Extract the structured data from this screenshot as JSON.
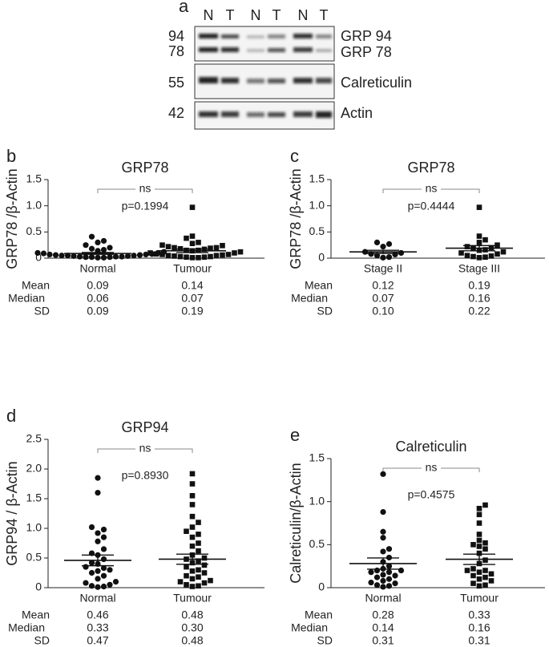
{
  "blot": {
    "panel": "a",
    "lanes": [
      "N",
      "T",
      "N",
      "T",
      "N",
      "T"
    ],
    "weights": [
      "94",
      "78",
      "55",
      "42"
    ],
    "proteins": [
      "GRP 94",
      "GRP 78",
      "Calreticulin",
      "Actin"
    ]
  },
  "chart_data": [
    {
      "type": "dot",
      "panel": "b",
      "title": "GRP78",
      "ylabel": "GRP78 /β-Actin",
      "ylim": [
        0,
        1.5
      ],
      "yticks": [
        0,
        0.5,
        {
          "value": 1,
          "label": "1.0"
        },
        1.5
      ],
      "comparison": {
        "label": "ns",
        "p": "p=0.1994"
      },
      "stats_names": [
        "Mean",
        "Median",
        "SD"
      ],
      "groups": [
        {
          "name": "Normal",
          "marker": "circle",
          "color": "#111111",
          "sem": 0.017,
          "stats": [
            0.09,
            0.06,
            0.09
          ],
          "values": [
            0.41,
            0.33,
            0.3,
            0.25,
            0.2,
            0.18,
            0.16,
            0.14,
            0.12,
            0.1,
            0.1,
            0.09,
            0.08,
            0.07,
            0.06,
            0.06,
            0.05,
            0.05,
            0.04,
            0.04,
            0.03,
            0.03,
            0.02,
            0.02,
            0.01,
            0.01,
            0.02,
            0.03,
            0.05,
            0.07
          ]
        },
        {
          "name": "Tumour",
          "marker": "square",
          "color": "#111111",
          "sem": 0.034,
          "stats": [
            0.14,
            0.07,
            0.19
          ],
          "values": [
            0.97,
            0.42,
            0.38,
            0.3,
            0.28,
            0.25,
            0.24,
            0.22,
            0.2,
            0.19,
            0.18,
            0.17,
            0.15,
            0.14,
            0.12,
            0.1,
            0.08,
            0.07,
            0.07,
            0.06,
            0.05,
            0.05,
            0.04,
            0.03,
            0.03,
            0.02,
            0.02,
            0.01,
            0.01,
            0.1,
            0.2,
            0.15
          ]
        }
      ]
    },
    {
      "type": "dot",
      "panel": "c",
      "title": "GRP78",
      "ylabel": "GRP78 /β-Actin",
      "ylim": [
        0,
        1.5
      ],
      "yticks": [
        0,
        0.5,
        {
          "value": 1,
          "label": "1.0"
        },
        1.5
      ],
      "comparison": {
        "label": "ns",
        "p": "p=0.4444"
      },
      "stats_names": [
        "Mean",
        "Median",
        "SD"
      ],
      "groups": [
        {
          "name": "Stage II",
          "marker": "circle",
          "color": "#111111",
          "sem": 0.03,
          "stats": [
            0.12,
            0.07,
            0.1
          ],
          "stats_labels": [
            "0.12",
            "0.07",
            "0.10"
          ],
          "values": [
            0.3,
            0.27,
            0.22,
            0.12,
            0.1,
            0.08,
            0.07,
            0.05,
            0.02,
            0.01
          ]
        },
        {
          "name": "Stage III",
          "marker": "square",
          "color": "#111111",
          "sem": 0.05,
          "stats": [
            0.19,
            0.16,
            0.22
          ],
          "values": [
            0.97,
            0.42,
            0.35,
            0.3,
            0.25,
            0.22,
            0.2,
            0.18,
            0.16,
            0.15,
            0.12,
            0.1,
            0.08,
            0.05,
            0.04,
            0.03,
            0.02,
            0.01
          ]
        }
      ]
    },
    {
      "type": "dot",
      "panel": "d",
      "title": "GRP94",
      "ylabel": "GRP94 / β-Actin",
      "ylim": [
        0,
        2.5
      ],
      "yticks": [
        0,
        0.5,
        {
          "value": 1,
          "label": "1.0"
        },
        1.5,
        {
          "value": 2,
          "label": "2.0"
        },
        2.5
      ],
      "comparison": {
        "label": "ns",
        "p": "p=0.8930"
      },
      "stats_names": [
        "Mean",
        "Median",
        "SD"
      ],
      "groups": [
        {
          "name": "Normal",
          "marker": "circle",
          "color": "#111111",
          "sem": 0.09,
          "stats": [
            0.46,
            0.33,
            0.47
          ],
          "values": [
            1.85,
            1.6,
            1.02,
            0.98,
            0.92,
            0.85,
            0.78,
            0.65,
            0.58,
            0.55,
            0.48,
            0.42,
            0.35,
            0.33,
            0.3,
            0.28,
            0.25,
            0.2,
            0.15,
            0.1,
            0.08,
            0.05,
            0.03,
            0.02,
            0.01,
            0.4
          ]
        },
        {
          "name": "Tumour",
          "marker": "square",
          "color": "#111111",
          "sem": 0.085,
          "stats": [
            0.48,
            0.3,
            0.48
          ],
          "stats_labels": [
            "0.48",
            "0.30",
            "0.48"
          ],
          "values": [
            1.92,
            1.75,
            1.55,
            1.4,
            1.2,
            1.1,
            1.02,
            0.95,
            0.9,
            0.85,
            0.75,
            0.62,
            0.55,
            0.48,
            0.45,
            0.42,
            0.35,
            0.3,
            0.28,
            0.25,
            0.2,
            0.18,
            0.15,
            0.12,
            0.1,
            0.08,
            0.05,
            0.03,
            0.02,
            0.7,
            0.5,
            0.38
          ]
        }
      ]
    },
    {
      "type": "dot",
      "panel": "e",
      "title": "Calreticulin",
      "ylabel": "Calreticulin/β-Actin",
      "ylim": [
        0,
        1.5
      ],
      "yticks": [
        0,
        0.5,
        {
          "value": 1,
          "label": "1.0"
        },
        1.5
      ],
      "comparison": {
        "label": "ns",
        "p": "p=0.4575"
      },
      "stats_names": [
        "Mean",
        "Median",
        "SD"
      ],
      "groups": [
        {
          "name": "Normal",
          "marker": "circle",
          "color": "#111111",
          "sem": 0.065,
          "stats": [
            0.28,
            0.14,
            0.31
          ],
          "values": [
            1.32,
            0.88,
            0.65,
            0.58,
            0.45,
            0.42,
            0.35,
            0.3,
            0.25,
            0.22,
            0.2,
            0.18,
            0.15,
            0.14,
            0.12,
            0.1,
            0.08,
            0.06,
            0.05,
            0.03,
            0.02,
            0.01,
            0.18,
            0.2
          ]
        },
        {
          "name": "Tumour",
          "marker": "square",
          "color": "#111111",
          "sem": 0.06,
          "stats": [
            0.33,
            0.16,
            0.31
          ],
          "values": [
            0.96,
            0.92,
            0.85,
            0.75,
            0.62,
            0.55,
            0.52,
            0.48,
            0.45,
            0.4,
            0.32,
            0.28,
            0.22,
            0.2,
            0.18,
            0.16,
            0.14,
            0.12,
            0.1,
            0.08,
            0.05,
            0.03,
            0.02,
            0.2,
            0.5
          ]
        }
      ]
    }
  ]
}
